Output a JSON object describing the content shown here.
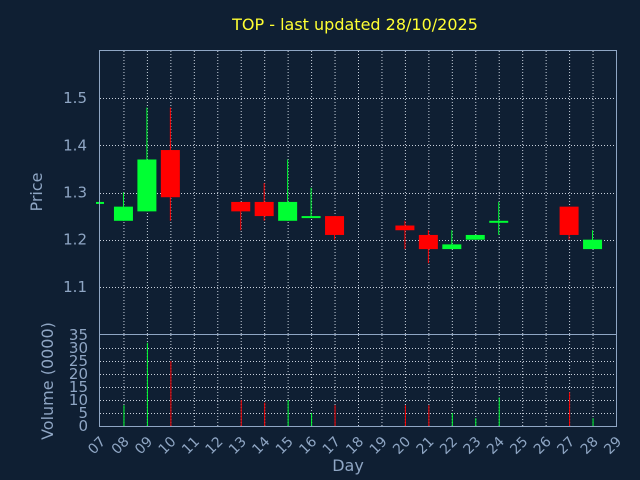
{
  "chart_data": {
    "type": "candlestick",
    "title": "TOP - last updated 28/10/2025",
    "xlabel": "Day",
    "colors": {
      "up": "#00ff33",
      "down": "#ff0000",
      "background": "#0f1f33",
      "text": "#8fa6c4",
      "title": "#ffff33"
    },
    "x_ticks": [
      "07",
      "08",
      "09",
      "10",
      "11",
      "12",
      "13",
      "14",
      "15",
      "16",
      "17",
      "18",
      "19",
      "20",
      "21",
      "22",
      "23",
      "24",
      "25",
      "26",
      "27",
      "28",
      "29"
    ],
    "price": {
      "ylabel": "Price",
      "ylim": [
        1.0,
        1.6
      ],
      "yticks": [
        "1.1",
        "1.2",
        "1.3",
        "1.4",
        "1.5"
      ],
      "ytick_values": [
        1.1,
        1.2,
        1.3,
        1.4,
        1.5
      ],
      "candles": [
        {
          "day": 7,
          "open": 1.28,
          "high": 1.28,
          "low": 1.28,
          "close": 1.28
        },
        {
          "day": 8,
          "open": 1.24,
          "high": 1.3,
          "low": 1.24,
          "close": 1.27
        },
        {
          "day": 9,
          "open": 1.26,
          "high": 1.48,
          "low": 1.26,
          "close": 1.37
        },
        {
          "day": 10,
          "open": 1.39,
          "high": 1.48,
          "low": 1.24,
          "close": 1.29
        },
        {
          "day": 13,
          "open": 1.28,
          "high": 1.28,
          "low": 1.22,
          "close": 1.26
        },
        {
          "day": 14,
          "open": 1.28,
          "high": 1.32,
          "low": 1.24,
          "close": 1.25
        },
        {
          "day": 15,
          "open": 1.24,
          "high": 1.37,
          "low": 1.24,
          "close": 1.28
        },
        {
          "day": 16,
          "open": 1.25,
          "high": 1.31,
          "low": 1.25,
          "close": 1.25
        },
        {
          "day": 17,
          "open": 1.25,
          "high": 1.25,
          "low": 1.2,
          "close": 1.21
        },
        {
          "day": 20,
          "open": 1.23,
          "high": 1.24,
          "low": 1.18,
          "close": 1.22
        },
        {
          "day": 21,
          "open": 1.21,
          "high": 1.22,
          "low": 1.15,
          "close": 1.18
        },
        {
          "day": 22,
          "open": 1.18,
          "high": 1.22,
          "low": 1.18,
          "close": 1.19
        },
        {
          "day": 23,
          "open": 1.2,
          "high": 1.21,
          "low": 1.2,
          "close": 1.21
        },
        {
          "day": 24,
          "open": 1.24,
          "high": 1.28,
          "low": 1.21,
          "close": 1.24
        },
        {
          "day": 27,
          "open": 1.27,
          "high": 1.27,
          "low": 1.2,
          "close": 1.21
        },
        {
          "day": 28,
          "open": 1.18,
          "high": 1.22,
          "low": 1.18,
          "close": 1.2
        }
      ]
    },
    "volume": {
      "ylabel": "Volume (0000)",
      "ylim": [
        0,
        35
      ],
      "yticks": [
        "0",
        "5",
        "10",
        "15",
        "20",
        "25",
        "30",
        "35"
      ],
      "ytick_values": [
        0,
        5,
        10,
        15,
        20,
        25,
        30,
        35
      ],
      "bars": [
        {
          "day": 8,
          "value": 8,
          "dir": "up"
        },
        {
          "day": 9,
          "value": 32,
          "dir": "up"
        },
        {
          "day": 10,
          "value": 25,
          "dir": "down"
        },
        {
          "day": 13,
          "value": 10,
          "dir": "down"
        },
        {
          "day": 14,
          "value": 9,
          "dir": "down"
        },
        {
          "day": 15,
          "value": 10,
          "dir": "up"
        },
        {
          "day": 16,
          "value": 5,
          "dir": "up"
        },
        {
          "day": 17,
          "value": 8,
          "dir": "down"
        },
        {
          "day": 20,
          "value": 8,
          "dir": "down"
        },
        {
          "day": 21,
          "value": 8,
          "dir": "down"
        },
        {
          "day": 22,
          "value": 5,
          "dir": "up"
        },
        {
          "day": 23,
          "value": 3,
          "dir": "up"
        },
        {
          "day": 24,
          "value": 11,
          "dir": "up"
        },
        {
          "day": 27,
          "value": 13,
          "dir": "down"
        },
        {
          "day": 28,
          "value": 3,
          "dir": "up"
        }
      ]
    }
  }
}
